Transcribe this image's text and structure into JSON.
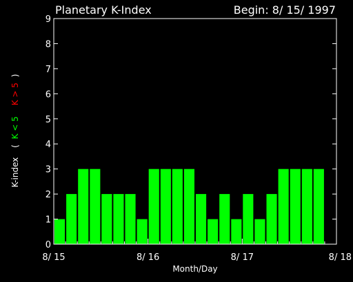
{
  "chart_data": {
    "type": "bar",
    "title": "Planetary K-Index",
    "subtitle": "Begin: 8/ 15/ 1997",
    "xlabel": "Month/Day",
    "ylabel_parts": {
      "main": "K-index",
      "open_paren": "(",
      "low_label": "K < 5",
      "high_label": "K > 5",
      "close_paren": ")"
    },
    "ylim": [
      0,
      9
    ],
    "yticks": [
      "0",
      "1",
      "2",
      "3",
      "4",
      "5",
      "6",
      "7",
      "8",
      "9"
    ],
    "xticks": [
      "8/ 15",
      "8/ 16",
      "8/ 17",
      "8/ 18"
    ],
    "interval_hours": 3,
    "values": [
      1,
      2,
      3,
      3,
      2,
      2,
      2,
      1,
      3,
      3,
      3,
      3,
      2,
      1,
      2,
      1,
      2,
      1,
      2,
      3,
      3,
      3,
      3
    ],
    "colors": {
      "background": "#000000",
      "axes": "#ffffff",
      "bar_low": "#00ff00",
      "bar_high": "#ff0000",
      "label_low": "#00ff00",
      "label_high": "#ff0000"
    },
    "threshold": 5,
    "grid": false
  }
}
